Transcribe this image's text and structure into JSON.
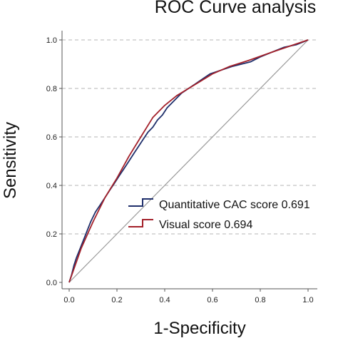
{
  "chart_data": {
    "type": "line",
    "title": "ROC Curve analysis",
    "xlabel": "1-Specificity",
    "ylabel": "Sensitivity",
    "xlim": [
      0,
      1
    ],
    "ylim": [
      0,
      1
    ],
    "x_ticks": [
      "0.0",
      "0.2",
      "0.4",
      "0.6",
      "0.8",
      "1.0"
    ],
    "y_ticks": [
      "0.0",
      "0.2",
      "0.4",
      "0.6",
      "0.8",
      "1.0"
    ],
    "grid": "horizontal-dashed",
    "legend_position": "center-right",
    "reference_line": {
      "x": [
        0,
        1
      ],
      "y": [
        0,
        1
      ],
      "color": "#9a9a9a"
    },
    "series": [
      {
        "name": "Quantitative CAC score 0.691",
        "color": "#1f2f6b",
        "x": [
          0.0,
          0.01,
          0.02,
          0.03,
          0.05,
          0.07,
          0.09,
          0.11,
          0.13,
          0.15,
          0.17,
          0.19,
          0.21,
          0.23,
          0.25,
          0.27,
          0.29,
          0.31,
          0.33,
          0.35,
          0.37,
          0.39,
          0.41,
          0.44,
          0.47,
          0.5,
          0.53,
          0.56,
          0.59,
          0.62,
          0.65,
          0.68,
          0.72,
          0.76,
          0.8,
          0.85,
          0.9,
          0.95,
          1.0
        ],
        "y": [
          0.0,
          0.03,
          0.07,
          0.1,
          0.15,
          0.2,
          0.25,
          0.29,
          0.32,
          0.35,
          0.38,
          0.41,
          0.44,
          0.47,
          0.5,
          0.53,
          0.56,
          0.59,
          0.62,
          0.64,
          0.67,
          0.69,
          0.72,
          0.75,
          0.78,
          0.8,
          0.82,
          0.84,
          0.86,
          0.87,
          0.88,
          0.89,
          0.9,
          0.91,
          0.93,
          0.95,
          0.97,
          0.98,
          1.0
        ]
      },
      {
        "name": "Visual score 0.694",
        "color": "#a3202a",
        "x": [
          0.0,
          0.05,
          0.1,
          0.15,
          0.2,
          0.25,
          0.3,
          0.35,
          0.4,
          0.45,
          0.5,
          0.55,
          0.6,
          0.67,
          0.75,
          0.85,
          1.0
        ],
        "y": [
          0.0,
          0.14,
          0.25,
          0.35,
          0.43,
          0.52,
          0.6,
          0.68,
          0.73,
          0.77,
          0.8,
          0.83,
          0.86,
          0.89,
          0.915,
          0.95,
          1.0
        ]
      }
    ]
  }
}
